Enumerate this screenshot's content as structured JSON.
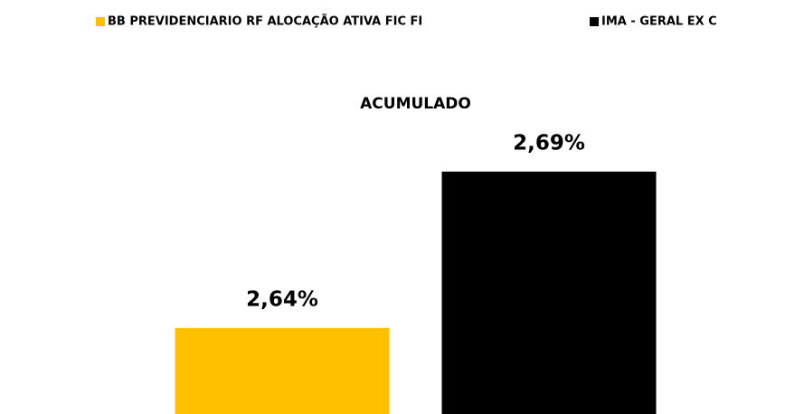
{
  "chart_data": {
    "type": "bar",
    "categories": [
      "ACUMULADO"
    ],
    "series": [
      {
        "name": "BB PREVIDENCIARIO RF ALOCAÇÃO ATIVA FIC FI",
        "color": "#ffc000",
        "values": [
          2.64
        ],
        "value_labels": [
          "2,64%"
        ]
      },
      {
        "name": "IMA - GERAL EX C",
        "color": "#000000",
        "values": [
          2.69
        ],
        "value_labels": [
          "2,69%"
        ]
      }
    ],
    "ylim": [
      2.6125,
      2.7
    ],
    "legend": "top"
  }
}
